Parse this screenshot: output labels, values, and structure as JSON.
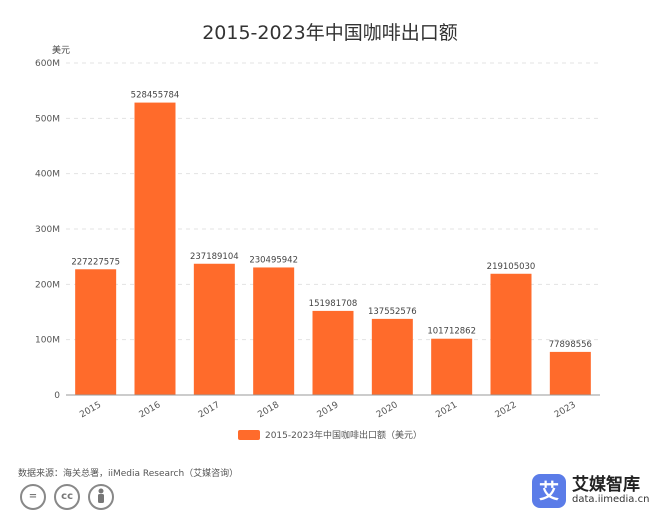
{
  "chart_data": {
    "type": "bar",
    "title": "2015-2023年中国咖啡出口额",
    "unit_label": "美元",
    "categories": [
      "2015",
      "2016",
      "2017",
      "2018",
      "2019",
      "2020",
      "2021",
      "2022",
      "2023"
    ],
    "series": [
      {
        "name": "2015-2023年中国咖啡出口额（美元）",
        "values": [
          227227575,
          528455784,
          237189104,
          230495942,
          151981708,
          137552576,
          101712862,
          219105030,
          77898556
        ]
      }
    ],
    "data_labels": [
      "227227575",
      "528455784",
      "237189104",
      "230495942",
      "151981708",
      "137552576",
      "101712862",
      "219105030",
      "77898556"
    ],
    "y_ticks": [
      0,
      100000000,
      200000000,
      300000000,
      400000000,
      500000000,
      600000000
    ],
    "y_tick_labels": [
      "0",
      "100M",
      "200M",
      "300M",
      "400M",
      "500M",
      "600M"
    ],
    "ylim": [
      0,
      600000000
    ],
    "grid": true,
    "legend_position": "bottom-center",
    "bar_color": "#FF6B2B"
  },
  "footer": {
    "source": "数据来源：海关总署，iiMedia Research（艾媒咨询）",
    "license_icons": [
      "=",
      "cc",
      "person"
    ],
    "brand_logo_char": "艾",
    "brand_name": "艾媒智库",
    "brand_url": "data.iimedia.cn"
  }
}
